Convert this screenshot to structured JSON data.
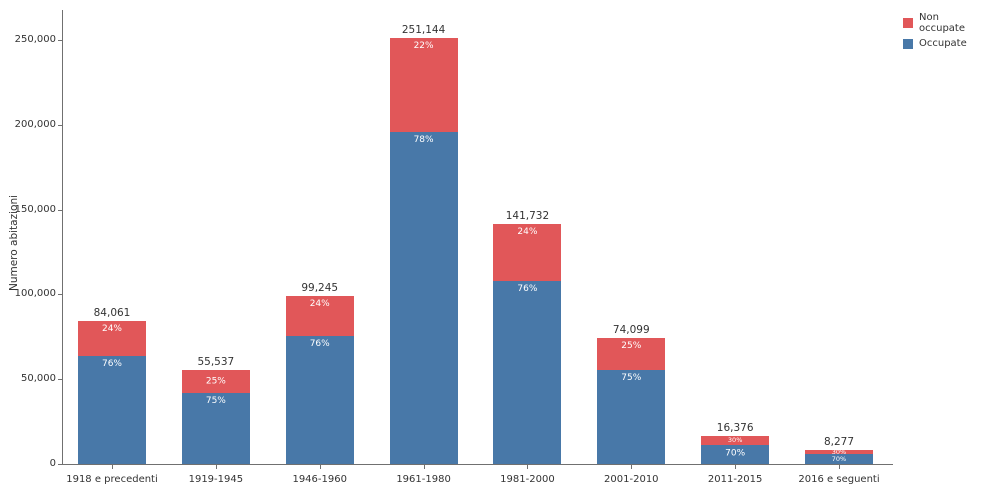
{
  "chart_data": {
    "type": "bar",
    "stacked": true,
    "title": "",
    "xlabel": "",
    "ylabel": "Numero abitazioni",
    "grid": false,
    "legend_position": "top-right",
    "categories": [
      "1918 e precedenti",
      "1919-1945",
      "1946-1960",
      "1961-1980",
      "1981-2000",
      "2001-2010",
      "2011-2015",
      "2016 e seguenti"
    ],
    "totals": [
      84061,
      55537,
      99245,
      251144,
      141732,
      74099,
      16376,
      8277
    ],
    "total_labels": [
      "84,061",
      "55,537",
      "99,245",
      "251,144",
      "141,732",
      "74,099",
      "16,376",
      "8,277"
    ],
    "series": [
      {
        "name": "Non occupate",
        "color": "#E15759",
        "pct": [
          24,
          25,
          24,
          22,
          24,
          25,
          30,
          30
        ],
        "pct_labels": [
          "24%",
          "25%",
          "24%",
          "22%",
          "24%",
          "25%",
          "30%",
          "30%"
        ]
      },
      {
        "name": "Occupate",
        "color": "#4878A8",
        "pct": [
          76,
          75,
          76,
          78,
          76,
          75,
          70,
          70
        ],
        "pct_labels": [
          "76%",
          "75%",
          "76%",
          "78%",
          "76%",
          "75%",
          "70%",
          "70%"
        ]
      }
    ],
    "yticks": [
      {
        "v": 0,
        "label": "0"
      },
      {
        "v": 50000,
        "label": "50,000"
      },
      {
        "v": 100000,
        "label": "100,000"
      },
      {
        "v": 150000,
        "label": "150,000"
      },
      {
        "v": 200000,
        "label": "200,000"
      },
      {
        "v": 250000,
        "label": "250,000"
      }
    ],
    "ylim": [
      0,
      267000
    ]
  }
}
